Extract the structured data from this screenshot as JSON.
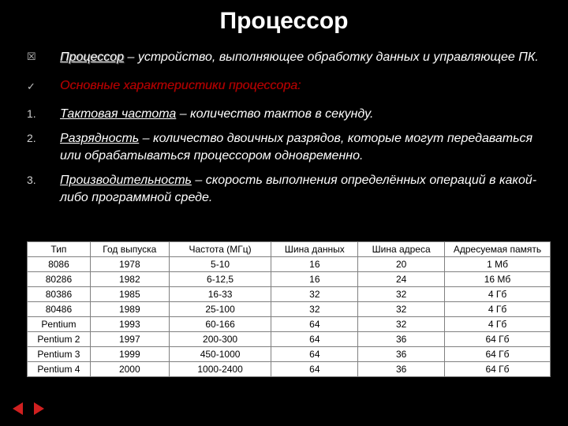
{
  "title": "Процессор",
  "def": {
    "marker": "☒",
    "term": "Процессор",
    "rest": " – устройство, выполняющее обработку данных и управляющее ПК."
  },
  "sub": {
    "marker": "✓",
    "text": "Основные характеристики процессора:"
  },
  "points": [
    {
      "n": "1.",
      "term": "Тактовая частота",
      "rest": " – количество тактов в секунду."
    },
    {
      "n": "2.",
      "term": "Разрядность",
      "rest": " – количество двоичных разрядов, которые могут передаваться или обрабатываться процессором одновременно."
    },
    {
      "n": "3.",
      "term": "Производительность",
      "rest": " – скорость выполнения определённых операций в какой-либо программной среде."
    }
  ],
  "table": {
    "columns": [
      "Тип",
      "Год выпуска",
      "Частота (МГц)",
      "Шина данных",
      "Шина адреса",
      "Адресуемая память"
    ],
    "rows": [
      [
        "8086",
        "1978",
        "5-10",
        "16",
        "20",
        "1 Мб"
      ],
      [
        "80286",
        "1982",
        "6-12,5",
        "16",
        "24",
        "16 Мб"
      ],
      [
        "80386",
        "1985",
        "16-33",
        "32",
        "32",
        "4 Гб"
      ],
      [
        "80486",
        "1989",
        "25-100",
        "32",
        "32",
        "4 Гб"
      ],
      [
        "Pentium",
        "1993",
        "60-166",
        "64",
        "32",
        "4 Гб"
      ],
      [
        "Pentium 2",
        "1997",
        "200-300",
        "64",
        "36",
        "64 Гб"
      ],
      [
        "Pentium 3",
        "1999",
        "450-1000",
        "64",
        "36",
        "64 Гб"
      ],
      [
        "Pentium 4",
        "2000",
        "1000-2400",
        "64",
        "36",
        "64 Гб"
      ]
    ],
    "col_widths": [
      "80px",
      "100px",
      "130px",
      "110px",
      "110px",
      "134px"
    ]
  },
  "colors": {
    "bg": "#000000",
    "text": "#ffffff",
    "red": "#b00000",
    "table_bg": "#ffffff",
    "table_border": "#808080",
    "arrow": "#d02020"
  }
}
